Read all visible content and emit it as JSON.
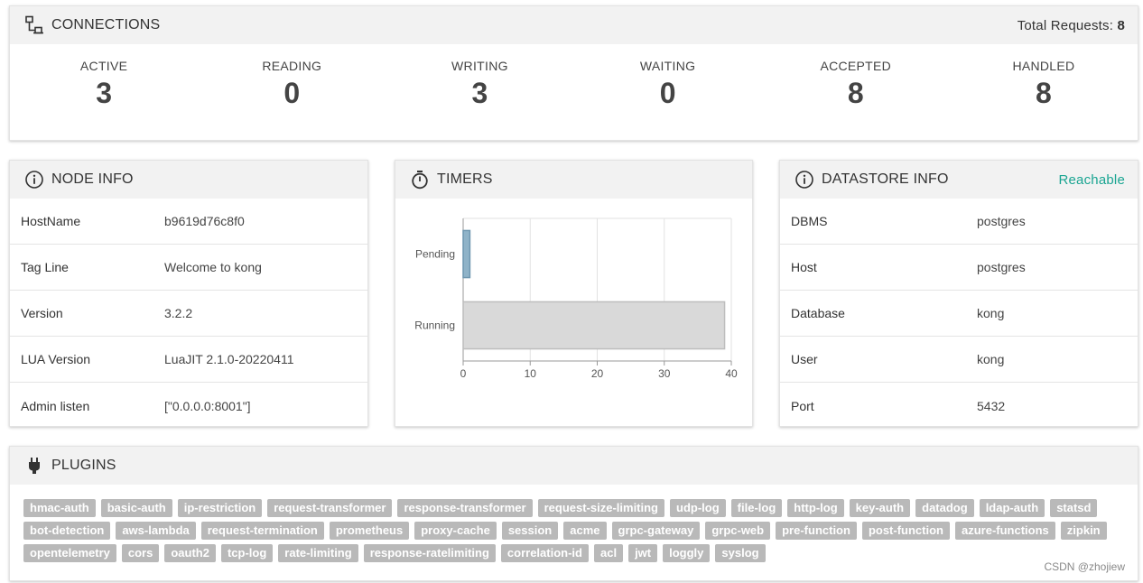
{
  "connections": {
    "title": "CONNECTIONS",
    "total_label": "Total Requests:",
    "total_value": "8",
    "stats": [
      {
        "label": "ACTIVE",
        "value": "3"
      },
      {
        "label": "READING",
        "value": "0"
      },
      {
        "label": "WRITING",
        "value": "3"
      },
      {
        "label": "WAITING",
        "value": "0"
      },
      {
        "label": "ACCEPTED",
        "value": "8"
      },
      {
        "label": "HANDLED",
        "value": "8"
      }
    ]
  },
  "node_info": {
    "title": "NODE INFO",
    "rows": [
      {
        "key": "HostName",
        "value": "b9619d76c8f0"
      },
      {
        "key": "Tag Line",
        "value": "Welcome to kong"
      },
      {
        "key": "Version",
        "value": "3.2.2"
      },
      {
        "key": "LUA Version",
        "value": "LuaJIT 2.1.0-20220411"
      },
      {
        "key": "Admin listen",
        "value": "[\"0.0.0.0:8001\"]"
      }
    ]
  },
  "timers": {
    "title": "TIMERS"
  },
  "chart_data": {
    "type": "bar",
    "orientation": "horizontal",
    "categories": [
      "Pending",
      "Running"
    ],
    "values": [
      1,
      39
    ],
    "xlim": [
      0,
      40
    ],
    "xticks": [
      "0",
      "10",
      "20",
      "30",
      "40"
    ],
    "colors": [
      "#8fb3c8",
      "#d9d9d9"
    ],
    "grid": true
  },
  "datastore_info": {
    "title": "DATASTORE INFO",
    "status": "Reachable",
    "status_color": "#1aa592",
    "rows": [
      {
        "key": "DBMS",
        "value": "postgres"
      },
      {
        "key": "Host",
        "value": "postgres"
      },
      {
        "key": "Database",
        "value": "kong"
      },
      {
        "key": "User",
        "value": "kong"
      },
      {
        "key": "Port",
        "value": "5432"
      }
    ]
  },
  "plugins": {
    "title": "PLUGINS",
    "items": [
      "hmac-auth",
      "basic-auth",
      "ip-restriction",
      "request-transformer",
      "response-transformer",
      "request-size-limiting",
      "udp-log",
      "file-log",
      "http-log",
      "key-auth",
      "datadog",
      "ldap-auth",
      "statsd",
      "bot-detection",
      "aws-lambda",
      "request-termination",
      "prometheus",
      "proxy-cache",
      "session",
      "acme",
      "grpc-gateway",
      "grpc-web",
      "pre-function",
      "post-function",
      "azure-functions",
      "zipkin",
      "opentelemetry",
      "cors",
      "oauth2",
      "tcp-log",
      "rate-limiting",
      "response-ratelimiting",
      "correlation-id",
      "acl",
      "jwt",
      "loggly",
      "syslog"
    ]
  },
  "watermark": "CSDN @zhojiew"
}
